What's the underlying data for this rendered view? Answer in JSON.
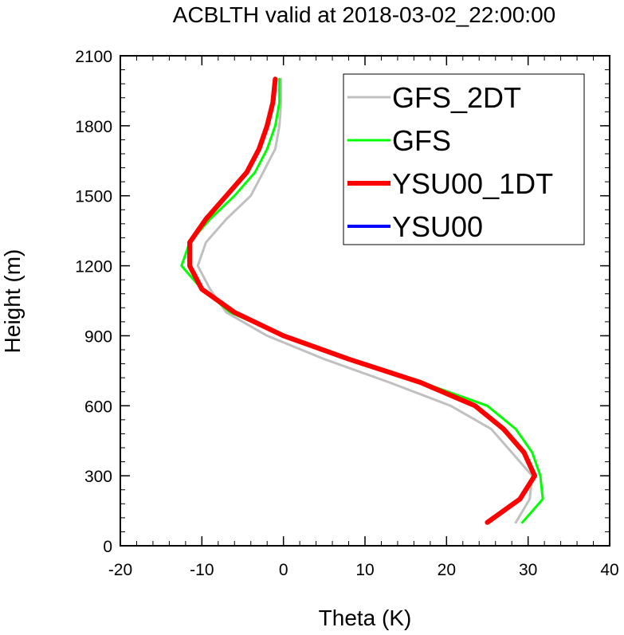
{
  "chart_data": {
    "type": "line",
    "title": "ACBLTH valid at 2018-03-02_22:00:00",
    "xlabel": "Theta (K)",
    "ylabel": "Height (m)",
    "xlim": [
      -20,
      40
    ],
    "ylim": [
      0,
      2100
    ],
    "xticks": [
      -20,
      -10,
      0,
      10,
      20,
      30,
      40
    ],
    "yticks": [
      0,
      300,
      600,
      900,
      1200,
      1500,
      1800,
      2100
    ],
    "grid": false,
    "legend": "top-right",
    "series": [
      {
        "name": "GFS_2DT",
        "color": "#c0c0c0",
        "points": [
          [
            28.5,
            100
          ],
          [
            30.2,
            200
          ],
          [
            30.5,
            300
          ],
          [
            28,
            400
          ],
          [
            25.5,
            500
          ],
          [
            20.5,
            600
          ],
          [
            13,
            700
          ],
          [
            5,
            800
          ],
          [
            -2,
            900
          ],
          [
            -7,
            1000
          ],
          [
            -9,
            1100
          ],
          [
            -10.5,
            1200
          ],
          [
            -9.5,
            1300
          ],
          [
            -7,
            1400
          ],
          [
            -4,
            1500
          ],
          [
            -2.5,
            1600
          ],
          [
            -1,
            1700
          ],
          [
            -0.5,
            1800
          ],
          [
            -0.3,
            1900
          ],
          [
            -0.3,
            2000
          ]
        ]
      },
      {
        "name": "GFS",
        "color": "#00ff00",
        "points": [
          [
            29.3,
            100
          ],
          [
            31.8,
            200
          ],
          [
            31.5,
            300
          ],
          [
            30.5,
            400
          ],
          [
            28.5,
            500
          ],
          [
            25,
            600
          ],
          [
            17,
            700
          ],
          [
            8,
            800
          ],
          [
            0,
            900
          ],
          [
            -6.5,
            1000
          ],
          [
            -10,
            1100
          ],
          [
            -12.5,
            1200
          ],
          [
            -11.5,
            1300
          ],
          [
            -9,
            1400
          ],
          [
            -6,
            1500
          ],
          [
            -3.5,
            1600
          ],
          [
            -2,
            1700
          ],
          [
            -1,
            1800
          ],
          [
            -0.5,
            1900
          ],
          [
            -0.5,
            2000
          ]
        ]
      },
      {
        "name": "YSU00_1DT",
        "color": "#ff0000",
        "points": [
          [
            25,
            100
          ],
          [
            29,
            200
          ],
          [
            30.8,
            300
          ],
          [
            29.5,
            400
          ],
          [
            27,
            500
          ],
          [
            23.5,
            600
          ],
          [
            16.8,
            700
          ],
          [
            8,
            800
          ],
          [
            0,
            900
          ],
          [
            -6,
            1000
          ],
          [
            -10,
            1100
          ],
          [
            -11.5,
            1200
          ],
          [
            -11.5,
            1300
          ],
          [
            -9.5,
            1400
          ],
          [
            -7,
            1500
          ],
          [
            -4.5,
            1600
          ],
          [
            -3,
            1700
          ],
          [
            -2,
            1800
          ],
          [
            -1.3,
            1900
          ],
          [
            -1,
            2000
          ]
        ]
      },
      {
        "name": "YSU00",
        "color": "#0000ff",
        "points": [
          [
            25,
            100
          ],
          [
            29,
            200
          ],
          [
            30.8,
            300
          ],
          [
            29.5,
            400
          ],
          [
            27,
            500
          ],
          [
            23.5,
            600
          ],
          [
            16.8,
            700
          ],
          [
            8,
            800
          ],
          [
            0,
            900
          ],
          [
            -6,
            1000
          ],
          [
            -10,
            1100
          ],
          [
            -11.5,
            1200
          ],
          [
            -11.5,
            1300
          ],
          [
            -9.5,
            1400
          ],
          [
            -7,
            1500
          ],
          [
            -4.5,
            1600
          ],
          [
            -3,
            1700
          ],
          [
            -2,
            1800
          ],
          [
            -1.3,
            1900
          ],
          [
            -1,
            2000
          ]
        ]
      }
    ]
  }
}
